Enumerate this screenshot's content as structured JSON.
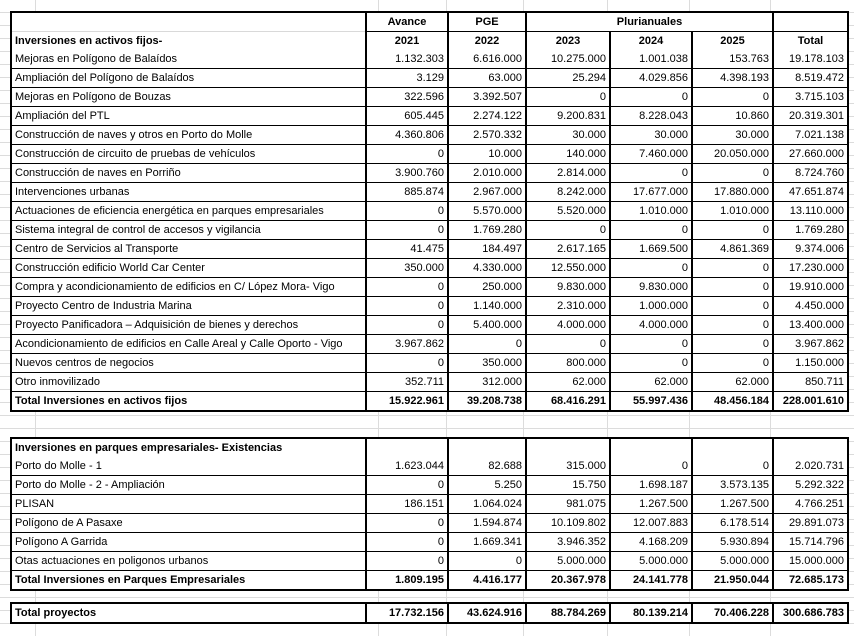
{
  "colors": {
    "border": "#000000",
    "gridline": "#dcdcdc",
    "text": "#000000",
    "background": "#ffffff"
  },
  "table": {
    "header": {
      "avance": "Avance",
      "pge": "PGE",
      "plurianuales": "Plurianuales",
      "years": [
        "2021",
        "2022",
        "2023",
        "2024",
        "2025"
      ],
      "total_label": "Total"
    },
    "section1": {
      "title": "Inversiones en activos fijos-",
      "rows": [
        {
          "label": "Mejoras en Polígono de Balaídos",
          "values": [
            "1.132.303",
            "6.616.000",
            "10.275.000",
            "1.001.038",
            "153.763",
            "19.178.103"
          ]
        },
        {
          "label": "Ampliación del Polígono de Balaídos",
          "values": [
            "3.129",
            "63.000",
            "25.294",
            "4.029.856",
            "4.398.193",
            "8.519.472"
          ]
        },
        {
          "label": "Mejoras en Polígono de Bouzas",
          "values": [
            "322.596",
            "3.392.507",
            "0",
            "0",
            "0",
            "3.715.103"
          ]
        },
        {
          "label": "Ampliación del PTL",
          "values": [
            "605.445",
            "2.274.122",
            "9.200.831",
            "8.228.043",
            "10.860",
            "20.319.301"
          ]
        },
        {
          "label": "Construcción de naves y otros en Porto do Molle",
          "values": [
            "4.360.806",
            "2.570.332",
            "30.000",
            "30.000",
            "30.000",
            "7.021.138"
          ]
        },
        {
          "label": "Construcción de circuito de pruebas de vehículos",
          "values": [
            "0",
            "10.000",
            "140.000",
            "7.460.000",
            "20.050.000",
            "27.660.000"
          ]
        },
        {
          "label": "Construcción de naves en Porriño",
          "values": [
            "3.900.760",
            "2.010.000",
            "2.814.000",
            "0",
            "0",
            "8.724.760"
          ]
        },
        {
          "label": "Intervenciones urbanas",
          "values": [
            "885.874",
            "2.967.000",
            "8.242.000",
            "17.677.000",
            "17.880.000",
            "47.651.874"
          ]
        },
        {
          "label": "Actuaciones de eficiencia energética en parques empresariales",
          "values": [
            "0",
            "5.570.000",
            "5.520.000",
            "1.010.000",
            "1.010.000",
            "13.110.000"
          ]
        },
        {
          "label": "Sistema integral de control de accesos y vigilancia",
          "values": [
            "0",
            "1.769.280",
            "0",
            "0",
            "0",
            "1.769.280"
          ]
        },
        {
          "label": "Centro de Servicios al Transporte",
          "values": [
            "41.475",
            "184.497",
            "2.617.165",
            "1.669.500",
            "4.861.369",
            "9.374.006"
          ]
        },
        {
          "label": "Construcción edificio World Car Center",
          "values": [
            "350.000",
            "4.330.000",
            "12.550.000",
            "0",
            "0",
            "17.230.000"
          ]
        },
        {
          "label": "Compra y acondicionamiento de edificios en C/ López Mora- Vigo",
          "values": [
            "0",
            "250.000",
            "9.830.000",
            "9.830.000",
            "0",
            "19.910.000"
          ]
        },
        {
          "label": "Proyecto Centro de Industria Marina",
          "values": [
            "0",
            "1.140.000",
            "2.310.000",
            "1.000.000",
            "0",
            "4.450.000"
          ]
        },
        {
          "label": "Proyecto Panificadora – Adquisición de bienes y derechos",
          "values": [
            "0",
            "5.400.000",
            "4.000.000",
            "4.000.000",
            "0",
            "13.400.000"
          ]
        },
        {
          "label": "Acondicionamiento de edificios en Calle Areal y Calle Oporto - Vigo",
          "values": [
            "3.967.862",
            "0",
            "0",
            "0",
            "0",
            "3.967.862"
          ]
        },
        {
          "label": "Nuevos centros de negocios",
          "values": [
            "0",
            "350.000",
            "800.000",
            "0",
            "0",
            "1.150.000"
          ]
        },
        {
          "label": "Otro inmovilizado",
          "values": [
            "352.711",
            "312.000",
            "62.000",
            "62.000",
            "62.000",
            "850.711"
          ]
        }
      ],
      "total": {
        "label": "Total Inversiones en activos fijos",
        "values": [
          "15.922.961",
          "39.208.738",
          "68.416.291",
          "55.997.436",
          "48.456.184",
          "228.001.610"
        ]
      }
    },
    "section2": {
      "title": "Inversiones en parques empresariales- Existencias",
      "rows": [
        {
          "label": "Porto do Molle - 1",
          "values": [
            "1.623.044",
            "82.688",
            "315.000",
            "0",
            "0",
            "2.020.731"
          ]
        },
        {
          "label": "Porto do Molle - 2 - Ampliación",
          "values": [
            "0",
            "5.250",
            "15.750",
            "1.698.187",
            "3.573.135",
            "5.292.322"
          ]
        },
        {
          "label": "PLISAN",
          "values": [
            "186.151",
            "1.064.024",
            "981.075",
            "1.267.500",
            "1.267.500",
            "4.766.251"
          ]
        },
        {
          "label": "Polígono de A Pasaxe",
          "values": [
            "0",
            "1.594.874",
            "10.109.802",
            "12.007.883",
            "6.178.514",
            "29.891.073"
          ]
        },
        {
          "label": "Polígono A Garrida",
          "values": [
            "0",
            "1.669.341",
            "3.946.352",
            "4.168.209",
            "5.930.894",
            "15.714.796"
          ]
        },
        {
          "label": "Otas actuaciones en poligonos urbanos",
          "values": [
            "0",
            "0",
            "5.000.000",
            "5.000.000",
            "5.000.000",
            "15.000.000"
          ]
        }
      ],
      "total": {
        "label": "Total Inversiones en Parques Empresariales",
        "values": [
          "1.809.195",
          "4.416.177",
          "20.367.978",
          "24.141.778",
          "21.950.044",
          "72.685.173"
        ]
      }
    },
    "grand_total": {
      "label": "Total proyectos",
      "values": [
        "17.732.156",
        "43.624.916",
        "88.784.269",
        "80.139.214",
        "70.406.228",
        "300.686.783"
      ]
    }
  }
}
